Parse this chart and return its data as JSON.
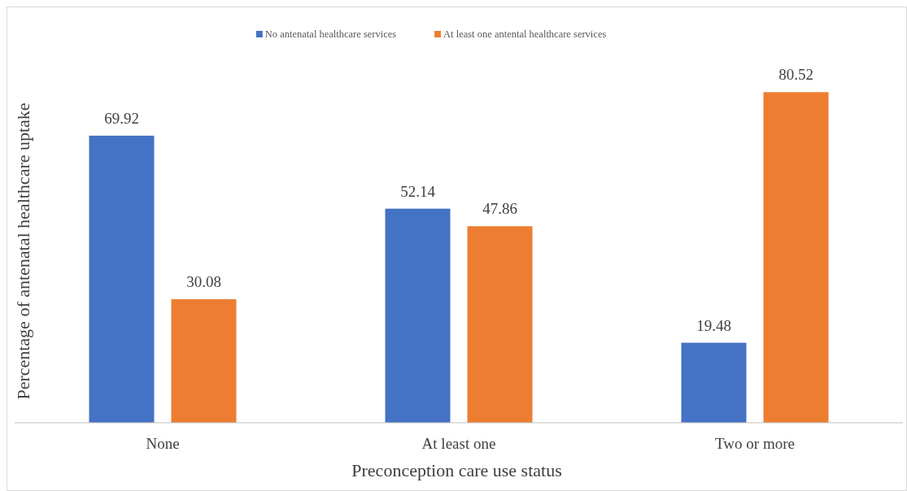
{
  "chart_data": {
    "type": "bar",
    "xlabel": "Preconception care use status",
    "ylabel": "Percentage of antenatal healthcare uptake",
    "categories": [
      "None",
      "At least one",
      "Two or more"
    ],
    "series": [
      {
        "name": "No antenatal healthcare services",
        "color": "#4472c4",
        "values": [
          69.92,
          52.14,
          19.48
        ]
      },
      {
        "name": "At least one antental healthcare services",
        "color": "#ed7d31",
        "values": [
          30.08,
          47.86,
          80.52
        ]
      }
    ],
    "data_labels": true,
    "legend": "top"
  }
}
